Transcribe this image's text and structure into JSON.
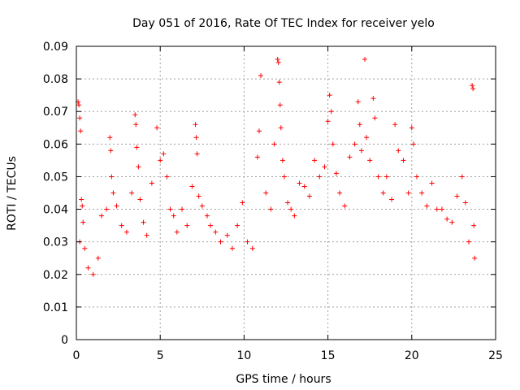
{
  "chart_data": {
    "type": "scatter",
    "title": "Day 051 of 2016, Rate Of TEC Index for receiver yelo",
    "xlabel": "GPS time / hours",
    "ylabel": "ROTI / TECUs",
    "xlim": [
      0,
      25
    ],
    "ylim": [
      0,
      0.09
    ],
    "xticks": [
      0,
      5,
      10,
      15,
      20,
      25
    ],
    "xtick_labels": [
      "0",
      "5",
      "10",
      "15",
      "20",
      "25"
    ],
    "yticks": [
      0,
      0.01,
      0.02,
      0.03,
      0.04,
      0.05,
      0.06,
      0.07,
      0.08,
      0.09
    ],
    "ytick_labels": [
      "0",
      "0.01",
      "0.02",
      "0.03",
      "0.04",
      "0.05",
      "0.06",
      "0.07",
      "0.08",
      "0.09"
    ],
    "grid": true,
    "marker": "+",
    "color": "#ff0000",
    "series": [
      {
        "name": "ROTI",
        "points": [
          [
            0.1,
            0.073
          ],
          [
            0.15,
            0.072
          ],
          [
            0.2,
            0.068
          ],
          [
            0.25,
            0.064
          ],
          [
            0.3,
            0.043
          ],
          [
            0.35,
            0.041
          ],
          [
            0.4,
            0.036
          ],
          [
            0.2,
            0.03
          ],
          [
            0.5,
            0.028
          ],
          [
            0.7,
            0.022
          ],
          [
            1.0,
            0.02
          ],
          [
            1.3,
            0.025
          ],
          [
            1.5,
            0.038
          ],
          [
            1.8,
            0.04
          ],
          [
            2.0,
            0.062
          ],
          [
            2.05,
            0.058
          ],
          [
            2.1,
            0.05
          ],
          [
            2.2,
            0.045
          ],
          [
            2.4,
            0.041
          ],
          [
            2.7,
            0.035
          ],
          [
            3.0,
            0.033
          ],
          [
            3.3,
            0.045
          ],
          [
            3.5,
            0.069
          ],
          [
            3.55,
            0.066
          ],
          [
            3.6,
            0.059
          ],
          [
            3.7,
            0.053
          ],
          [
            3.8,
            0.043
          ],
          [
            4.0,
            0.036
          ],
          [
            4.2,
            0.032
          ],
          [
            4.5,
            0.048
          ],
          [
            4.8,
            0.065
          ],
          [
            5.0,
            0.055
          ],
          [
            5.2,
            0.057
          ],
          [
            5.4,
            0.05
          ],
          [
            5.6,
            0.04
          ],
          [
            5.8,
            0.038
          ],
          [
            6.0,
            0.033
          ],
          [
            6.3,
            0.04
          ],
          [
            6.6,
            0.035
          ],
          [
            6.9,
            0.047
          ],
          [
            7.1,
            0.066
          ],
          [
            7.15,
            0.062
          ],
          [
            7.2,
            0.057
          ],
          [
            7.3,
            0.044
          ],
          [
            7.5,
            0.041
          ],
          [
            7.8,
            0.038
          ],
          [
            8.0,
            0.035
          ],
          [
            8.3,
            0.033
          ],
          [
            8.6,
            0.03
          ],
          [
            9.0,
            0.032
          ],
          [
            9.3,
            0.028
          ],
          [
            9.6,
            0.035
          ],
          [
            9.9,
            0.042
          ],
          [
            10.2,
            0.03
          ],
          [
            10.5,
            0.028
          ],
          [
            10.8,
            0.056
          ],
          [
            10.9,
            0.064
          ],
          [
            11.0,
            0.081
          ],
          [
            11.3,
            0.045
          ],
          [
            11.6,
            0.04
          ],
          [
            11.8,
            0.06
          ],
          [
            12.0,
            0.086
          ],
          [
            12.05,
            0.085
          ],
          [
            12.1,
            0.079
          ],
          [
            12.15,
            0.072
          ],
          [
            12.2,
            0.065
          ],
          [
            12.3,
            0.055
          ],
          [
            12.4,
            0.05
          ],
          [
            12.6,
            0.042
          ],
          [
            12.8,
            0.04
          ],
          [
            13.0,
            0.038
          ],
          [
            13.3,
            0.048
          ],
          [
            13.6,
            0.047
          ],
          [
            13.9,
            0.044
          ],
          [
            14.2,
            0.055
          ],
          [
            14.5,
            0.05
          ],
          [
            14.8,
            0.053
          ],
          [
            15.0,
            0.067
          ],
          [
            15.1,
            0.075
          ],
          [
            15.2,
            0.07
          ],
          [
            15.3,
            0.06
          ],
          [
            15.5,
            0.051
          ],
          [
            15.7,
            0.045
          ],
          [
            16.0,
            0.041
          ],
          [
            16.3,
            0.056
          ],
          [
            16.6,
            0.06
          ],
          [
            16.8,
            0.073
          ],
          [
            16.9,
            0.066
          ],
          [
            17.0,
            0.058
          ],
          [
            17.2,
            0.086
          ],
          [
            17.3,
            0.062
          ],
          [
            17.5,
            0.055
          ],
          [
            17.7,
            0.074
          ],
          [
            17.8,
            0.068
          ],
          [
            18.0,
            0.05
          ],
          [
            18.3,
            0.045
          ],
          [
            18.5,
            0.05
          ],
          [
            18.8,
            0.043
          ],
          [
            19.0,
            0.066
          ],
          [
            19.2,
            0.058
          ],
          [
            19.5,
            0.055
          ],
          [
            19.8,
            0.045
          ],
          [
            20.0,
            0.065
          ],
          [
            20.1,
            0.06
          ],
          [
            20.3,
            0.05
          ],
          [
            20.6,
            0.045
          ],
          [
            20.9,
            0.041
          ],
          [
            21.2,
            0.048
          ],
          [
            21.5,
            0.04
          ],
          [
            21.8,
            0.04
          ],
          [
            22.1,
            0.037
          ],
          [
            22.4,
            0.036
          ],
          [
            22.7,
            0.044
          ],
          [
            23.0,
            0.05
          ],
          [
            23.2,
            0.042
          ],
          [
            23.4,
            0.03
          ],
          [
            23.6,
            0.078
          ],
          [
            23.65,
            0.077
          ],
          [
            23.7,
            0.035
          ],
          [
            23.75,
            0.025
          ]
        ]
      }
    ]
  }
}
